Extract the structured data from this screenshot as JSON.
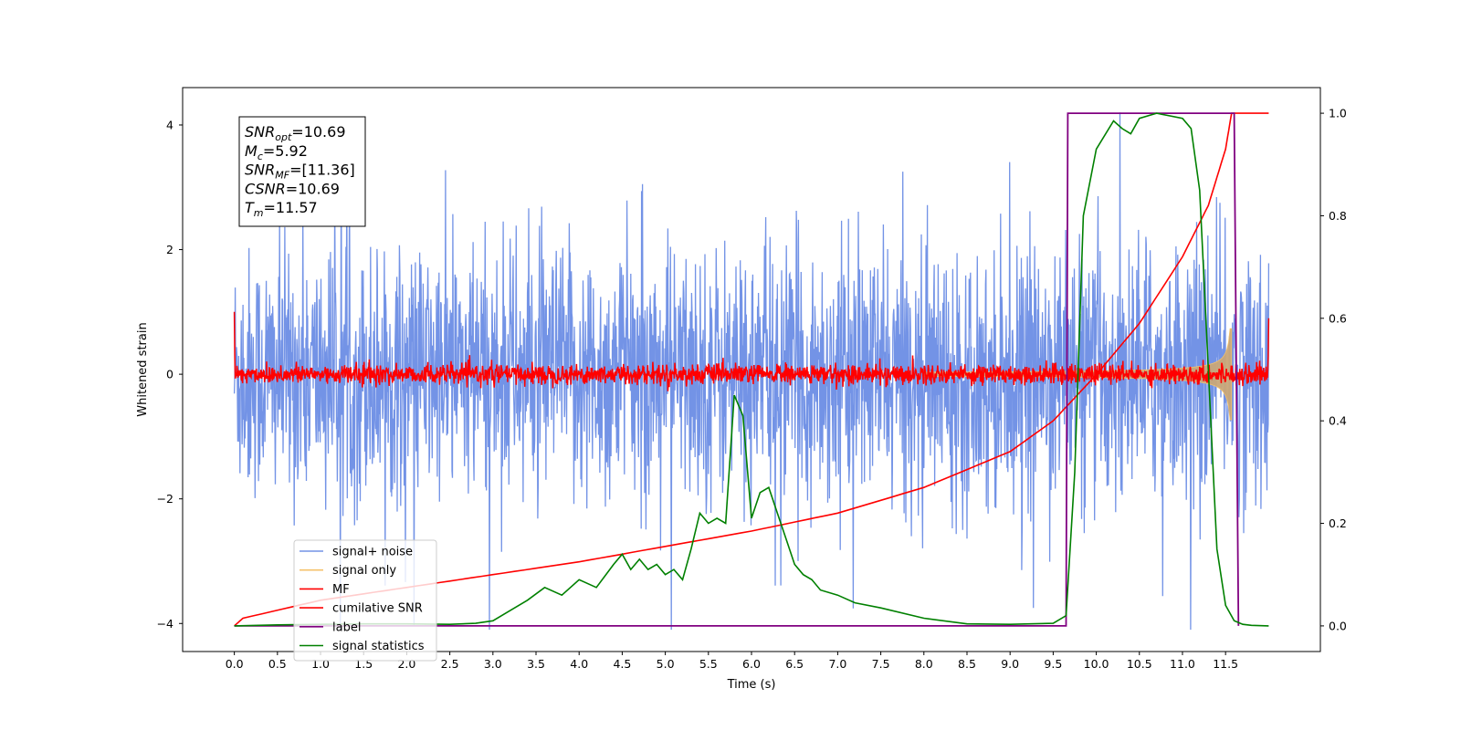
{
  "chart_data": {
    "type": "line",
    "xlabel": "Time (s)",
    "ylabel": "Whitened strain",
    "xlim": [
      -0.6,
      12.6
    ],
    "ylim": [
      -4.45,
      4.6
    ],
    "ylim_right": [
      -0.05,
      1.05
    ],
    "xticks": [
      "0.0",
      "0.5",
      "1.0",
      "1.5",
      "2.0",
      "2.5",
      "3.0",
      "3.5",
      "4.0",
      "4.5",
      "5.0",
      "5.5",
      "6.0",
      "6.5",
      "7.0",
      "7.5",
      "8.0",
      "8.5",
      "9.0",
      "9.5",
      "10.0",
      "10.5",
      "11.0",
      "11.5"
    ],
    "yticks_left": [
      "4",
      "2",
      "0",
      "−2",
      "−4"
    ],
    "yticks_right": [
      "1.0",
      "0.8",
      "0.6",
      "0.4",
      "0.2",
      "0.0"
    ],
    "annotation": {
      "snr_opt": {
        "sym": "SNR",
        "sub": "opt",
        "value": "=10.69"
      },
      "mc": {
        "sym": "M",
        "sub": "c",
        "value": "=5.92"
      },
      "snr_mf": {
        "sym": "SNR",
        "sub": "MF",
        "value": "=[11.36]"
      },
      "csnr": {
        "sym": "CSNR",
        "sub": "",
        "value": "=10.69"
      },
      "tm": {
        "sym": "T",
        "sub": "m",
        "value": "=11.57"
      }
    },
    "series": [
      {
        "name": "signal+ noise",
        "color": "#7393e6",
        "axis": "left",
        "kind": "noise",
        "x_range": [
          0.0,
          12.0
        ],
        "amplitude_sd": 1.0
      },
      {
        "name": "signal only",
        "color": "#f5c26b",
        "fill_color": "#c9a678",
        "axis": "left",
        "kind": "chirp",
        "x_range": [
          8.0,
          11.57
        ],
        "peak_amplitude": 0.85
      },
      {
        "name": "MF",
        "color": "#ff0000",
        "axis": "left",
        "kind": "mf",
        "x_range": [
          0.0,
          12.0
        ],
        "level": 0.0,
        "noise_sd": 0.08
      },
      {
        "name": "cumilative SNR",
        "color": "#ff0000",
        "axis": "right",
        "x": [
          0.0,
          0.1,
          1.0,
          2.0,
          3.0,
          4.0,
          5.0,
          6.0,
          7.0,
          8.0,
          9.0,
          9.5,
          10.0,
          10.5,
          11.0,
          11.3,
          11.5,
          11.57,
          12.0
        ],
        "y": [
          0.0,
          0.015,
          0.05,
          0.075,
          0.1,
          0.125,
          0.155,
          0.185,
          0.22,
          0.27,
          0.34,
          0.4,
          0.49,
          0.59,
          0.72,
          0.82,
          0.93,
          1.0,
          1.0
        ]
      },
      {
        "name": "label",
        "color": "#800080",
        "axis": "right",
        "x": [
          0.0,
          9.65,
          9.67,
          11.6,
          11.65,
          11.65
        ],
        "y": [
          0.0,
          0.0,
          1.0,
          1.0,
          0.0,
          0.0
        ]
      },
      {
        "name": "signal statistics",
        "color": "#008000",
        "axis": "right",
        "x": [
          0.0,
          0.5,
          1.0,
          1.5,
          2.0,
          2.5,
          2.8,
          3.0,
          3.2,
          3.4,
          3.6,
          3.8,
          4.0,
          4.2,
          4.4,
          4.5,
          4.6,
          4.7,
          4.8,
          4.9,
          5.0,
          5.1,
          5.2,
          5.3,
          5.4,
          5.5,
          5.6,
          5.7,
          5.8,
          5.9,
          6.0,
          6.1,
          6.2,
          6.3,
          6.4,
          6.5,
          6.6,
          6.7,
          6.8,
          7.0,
          7.2,
          7.5,
          8.0,
          8.5,
          9.0,
          9.5,
          9.65,
          9.75,
          9.85,
          10.0,
          10.2,
          10.3,
          10.4,
          10.5,
          10.7,
          11.0,
          11.1,
          11.2,
          11.3,
          11.4,
          11.5,
          11.6,
          11.7,
          11.8,
          12.0
        ],
        "y": [
          0.0,
          0.002,
          0.003,
          0.004,
          0.004,
          0.003,
          0.005,
          0.01,
          0.03,
          0.05,
          0.075,
          0.06,
          0.09,
          0.075,
          0.12,
          0.14,
          0.11,
          0.13,
          0.11,
          0.12,
          0.1,
          0.11,
          0.09,
          0.15,
          0.22,
          0.2,
          0.21,
          0.2,
          0.45,
          0.41,
          0.21,
          0.26,
          0.27,
          0.22,
          0.17,
          0.12,
          0.1,
          0.09,
          0.07,
          0.06,
          0.045,
          0.035,
          0.015,
          0.004,
          0.003,
          0.005,
          0.02,
          0.3,
          0.8,
          0.93,
          0.985,
          0.97,
          0.96,
          0.99,
          1.0,
          0.99,
          0.97,
          0.85,
          0.5,
          0.15,
          0.04,
          0.01,
          0.003,
          0.001,
          0.0
        ]
      }
    ],
    "legend_position": "lower-left",
    "grid": false
  }
}
